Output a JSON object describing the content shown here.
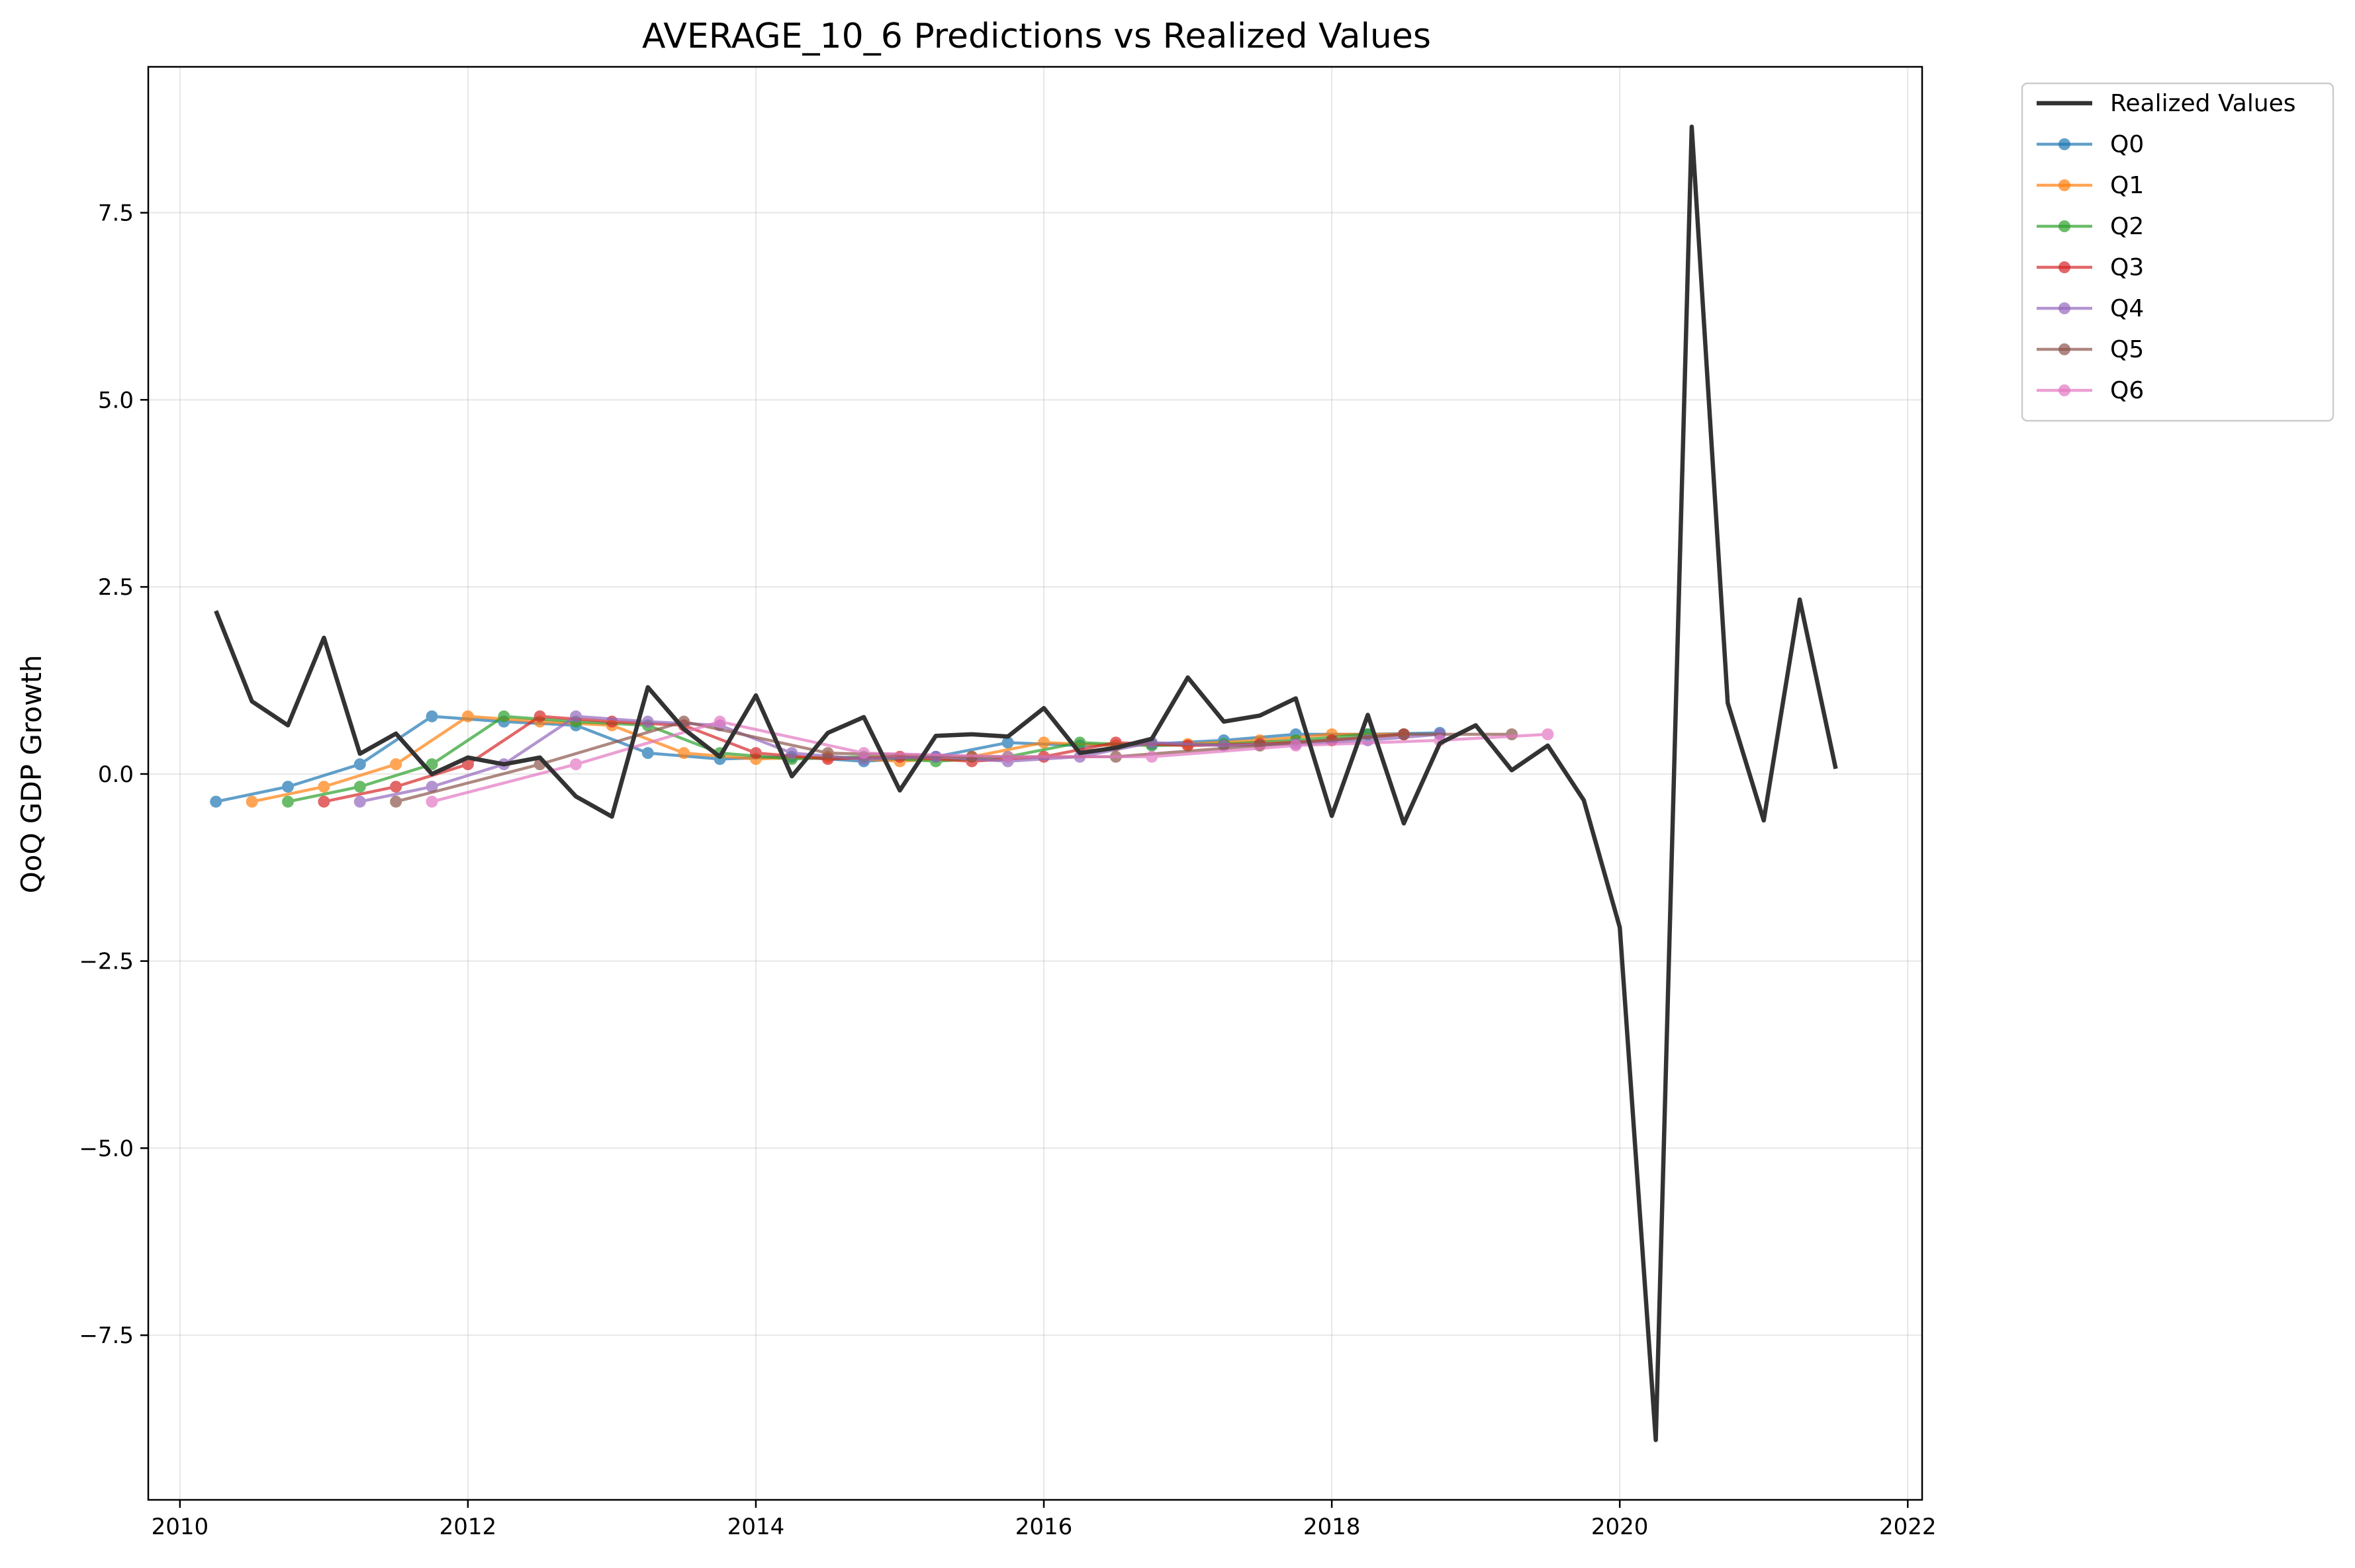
{
  "chart_data": {
    "type": "line",
    "title": "AVERAGE_10_6 Predictions vs Realized Values",
    "xlabel": "",
    "ylabel": "QoQ GDP Growth",
    "xlim": [
      2009.78,
      2022.1
    ],
    "ylim": [
      -9.7,
      9.45
    ],
    "xticks": [
      2010,
      2012,
      2014,
      2016,
      2018,
      2020,
      2022
    ],
    "yticks": [
      -7.5,
      -5.0,
      -2.5,
      0.0,
      2.5,
      5.0,
      7.5
    ],
    "xtick_labels": [
      "2010",
      "2012",
      "2014",
      "2016",
      "2018",
      "2020",
      "2022"
    ],
    "ytick_labels": [
      "−7.5",
      "−5.0",
      "−2.5",
      "0.0",
      "2.5",
      "5.0",
      "7.5"
    ],
    "grid": true,
    "legend_position": "outside top-right",
    "realized": {
      "name": "Realized Values",
      "color": "#333333",
      "x": [
        2010.25,
        2010.5,
        2010.75,
        2011.0,
        2011.25,
        2011.5,
        2011.75,
        2012.0,
        2012.25,
        2012.5,
        2012.75,
        2013.0,
        2013.25,
        2013.5,
        2013.75,
        2014.0,
        2014.25,
        2014.5,
        2014.75,
        2015.0,
        2015.25,
        2015.5,
        2015.75,
        2016.0,
        2016.25,
        2016.5,
        2016.75,
        2017.0,
        2017.25,
        2017.5,
        2017.75,
        2018.0,
        2018.25,
        2018.5,
        2018.75,
        2019.0,
        2019.25,
        2019.5,
        2019.75,
        2020.0,
        2020.25,
        2020.5,
        2020.75,
        2021.0,
        2021.25,
        2021.5
      ],
      "y": [
        2.18,
        0.97,
        0.65,
        1.82,
        0.27,
        0.54,
        0.0,
        0.22,
        0.13,
        0.22,
        -0.3,
        -0.57,
        1.16,
        0.6,
        0.23,
        1.05,
        -0.03,
        0.55,
        0.76,
        -0.22,
        0.51,
        0.53,
        0.5,
        0.88,
        0.28,
        0.35,
        0.47,
        1.29,
        0.7,
        0.78,
        1.01,
        -0.56,
        0.79,
        -0.66,
        0.41,
        0.65,
        0.05,
        0.38,
        -0.35,
        -2.05,
        -8.9,
        8.65,
        0.95,
        -0.62,
        2.33,
        0.07
      ]
    },
    "series": [
      {
        "name": "Q0",
        "color": "#1f77b4",
        "x": [
          2010.25,
          2010.75,
          2011.25,
          2011.75,
          2012.25,
          2012.75,
          2013.25,
          2013.75,
          2014.25,
          2014.75,
          2015.25,
          2015.75,
          2016.25,
          2016.75,
          2017.25,
          2017.75,
          2018.25,
          2018.75
        ],
        "y": [
          -0.37,
          -0.17,
          0.13,
          0.77,
          0.7,
          0.65,
          0.28,
          0.2,
          0.23,
          0.17,
          0.23,
          0.42,
          0.38,
          0.4,
          0.45,
          0.53,
          0.53,
          0.55
        ]
      },
      {
        "name": "Q1",
        "color": "#ff7f0e",
        "x": [
          2010.5,
          2011.0,
          2011.5,
          2012.0,
          2012.5,
          2013.0,
          2013.5,
          2014.0,
          2014.5,
          2015.0,
          2015.5,
          2016.0,
          2016.5,
          2017.0,
          2017.5,
          2018.0,
          2018.5
        ],
        "y": [
          -0.37,
          -0.17,
          0.13,
          0.77,
          0.7,
          0.65,
          0.28,
          0.2,
          0.23,
          0.17,
          0.23,
          0.42,
          0.38,
          0.4,
          0.45,
          0.53,
          0.53
        ]
      },
      {
        "name": "Q2",
        "color": "#2ca02c",
        "x": [
          2010.75,
          2011.25,
          2011.75,
          2012.25,
          2012.75,
          2013.25,
          2013.75,
          2014.25,
          2014.75,
          2015.25,
          2015.75,
          2016.25,
          2016.75,
          2017.25,
          2017.75,
          2018.25
        ],
        "y": [
          -0.37,
          -0.17,
          0.13,
          0.77,
          0.7,
          0.65,
          0.28,
          0.2,
          0.23,
          0.17,
          0.23,
          0.42,
          0.38,
          0.4,
          0.45,
          0.53
        ]
      },
      {
        "name": "Q3",
        "color": "#d62728",
        "x": [
          2011.0,
          2011.5,
          2012.0,
          2012.5,
          2013.0,
          2013.5,
          2014.0,
          2014.5,
          2015.0,
          2015.5,
          2016.0,
          2016.5,
          2017.0,
          2017.5,
          2018.0,
          2018.5
        ],
        "y": [
          -0.37,
          -0.17,
          0.13,
          0.77,
          0.7,
          0.65,
          0.28,
          0.2,
          0.23,
          0.17,
          0.23,
          0.42,
          0.38,
          0.4,
          0.45,
          0.53
        ]
      },
      {
        "name": "Q4",
        "color": "#9467bd",
        "x": [
          2011.25,
          2011.75,
          2012.25,
          2012.75,
          2013.25,
          2013.75,
          2014.25,
          2014.75,
          2015.25,
          2015.75,
          2016.25,
          2016.75,
          2017.25,
          2017.75,
          2018.25,
          2018.75
        ],
        "y": [
          -0.37,
          -0.17,
          0.13,
          0.77,
          0.7,
          0.65,
          0.28,
          0.2,
          0.23,
          0.17,
          0.23,
          0.42,
          0.38,
          0.4,
          0.45,
          0.53
        ]
      },
      {
        "name": "Q5",
        "color": "#8c564b",
        "x": [
          2011.5,
          2012.5,
          2013.5,
          2014.5,
          2015.5,
          2016.5,
          2017.5,
          2018.5,
          2019.25
        ],
        "y": [
          -0.37,
          0.13,
          0.7,
          0.28,
          0.23,
          0.23,
          0.38,
          0.53,
          0.53
        ]
      },
      {
        "name": "Q6",
        "color": "#e377c2",
        "x": [
          2011.75,
          2012.75,
          2013.75,
          2014.75,
          2015.75,
          2016.75,
          2017.75,
          2018.75,
          2019.5
        ],
        "y": [
          -0.37,
          0.13,
          0.7,
          0.28,
          0.23,
          0.23,
          0.38,
          0.45,
          0.53
        ]
      }
    ]
  }
}
